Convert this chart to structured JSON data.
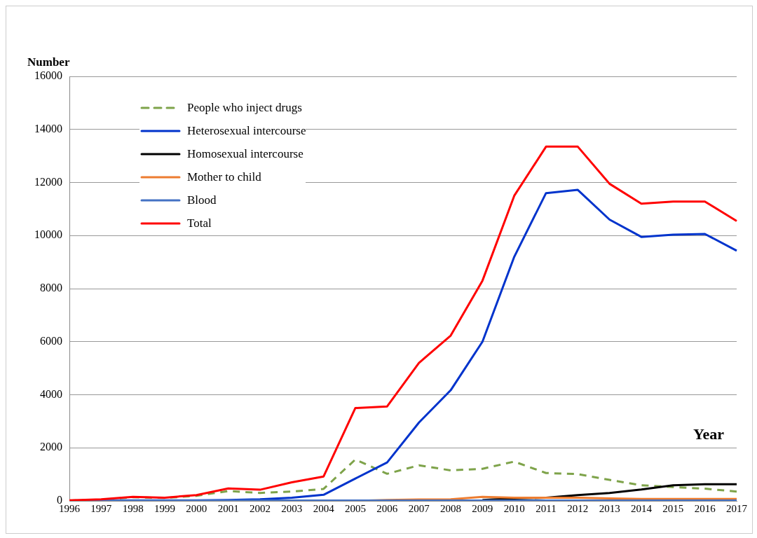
{
  "chart_data": {
    "type": "line",
    "xlabel": "Year",
    "ylabel": "Number",
    "categories": [
      "1996",
      "1997",
      "1998",
      "1999",
      "2000",
      "2001",
      "2002",
      "2003",
      "2004",
      "2005",
      "2006",
      "2007",
      "2008",
      "2009",
      "2010",
      "2011",
      "2012",
      "2013",
      "2014",
      "2015",
      "2016",
      "2017"
    ],
    "series": [
      {
        "name": "People who inject drugs",
        "color": "#7ea34a",
        "line_style": "dashed",
        "values": [
          10,
          40,
          140,
          110,
          190,
          370,
          300,
          350,
          450,
          1560,
          1020,
          1340,
          1150,
          1210,
          1480,
          1050,
          1010,
          790,
          590,
          520,
          460,
          350
        ]
      },
      {
        "name": "Heterosexual intercourse",
        "color": "#0033cc",
        "values": [
          10,
          20,
          20,
          20,
          20,
          30,
          60,
          120,
          230,
          840,
          1450,
          2950,
          4170,
          6000,
          9200,
          11600,
          11720,
          10600,
          9950,
          10030,
          10060,
          9430
        ]
      },
      {
        "name": "Homosexual intercourse",
        "color": "#000000",
        "values": [
          null,
          null,
          null,
          null,
          null,
          null,
          null,
          null,
          null,
          null,
          null,
          null,
          null,
          30,
          90,
          120,
          220,
          300,
          430,
          590,
          630,
          630
        ]
      },
      {
        "name": "Mother to child",
        "color": "#ed7d31",
        "values": [
          null,
          null,
          null,
          null,
          null,
          null,
          null,
          null,
          null,
          0,
          30,
          50,
          60,
          150,
          120,
          120,
          120,
          90,
          70,
          70,
          70,
          70
        ]
      },
      {
        "name": "Blood",
        "color": "#4472c4",
        "values": [
          10,
          10,
          10,
          10,
          10,
          10,
          10,
          10,
          10,
          10,
          10,
          10,
          10,
          10,
          10,
          10,
          10,
          10,
          10,
          10,
          10,
          10
        ]
      },
      {
        "name": "Total",
        "color": "#ff0000",
        "values": [
          20,
          60,
          150,
          120,
          220,
          470,
          420,
          700,
          920,
          3500,
          3560,
          5200,
          6230,
          8300,
          11500,
          13350,
          13350,
          11950,
          11200,
          11280,
          11280,
          10550
        ]
      }
    ],
    "ylim": [
      0,
      16000
    ],
    "yticks": [
      0,
      2000,
      4000,
      6000,
      8000,
      10000,
      12000,
      14000,
      16000
    ],
    "grid": "y",
    "legend": "top left",
    "marker": "none"
  }
}
